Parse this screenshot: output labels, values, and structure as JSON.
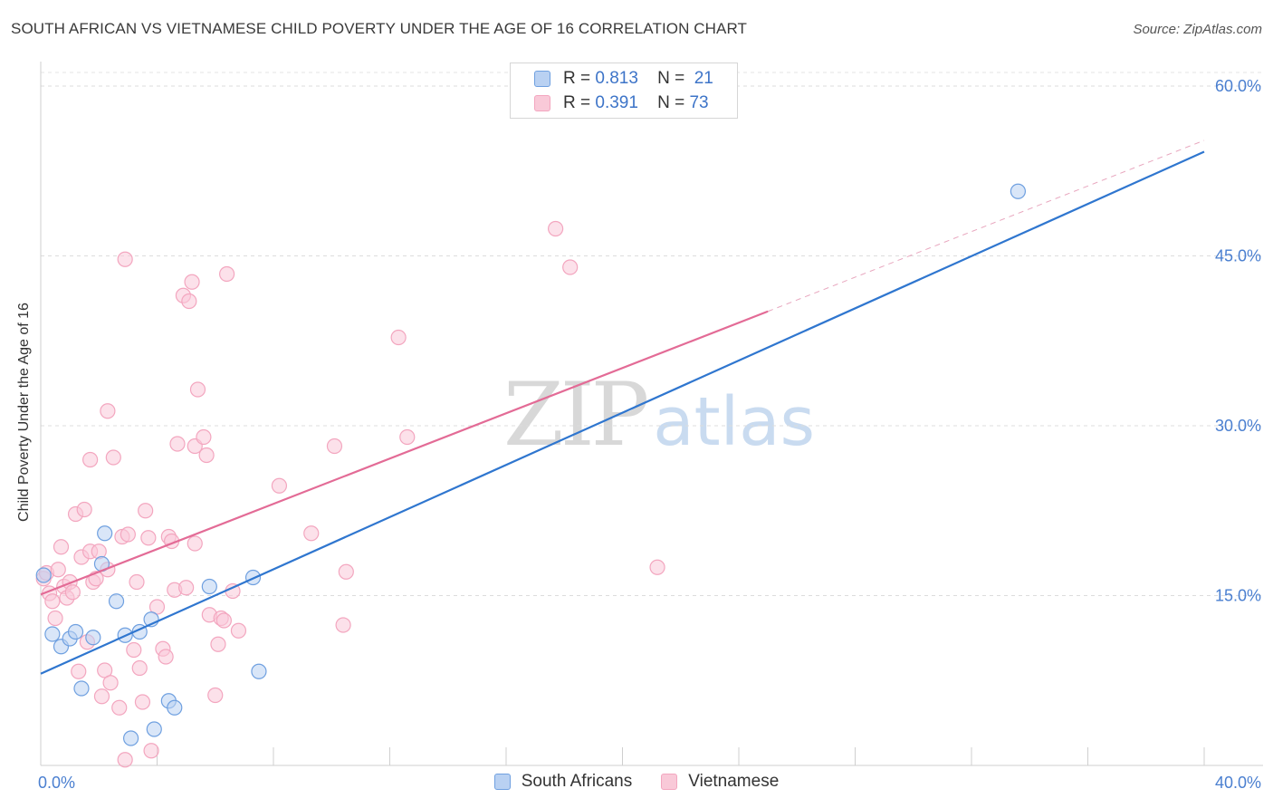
{
  "chart_data": {
    "type": "scatter",
    "title": "SOUTH AFRICAN VS VIETNAMESE CHILD POVERTY UNDER THE AGE OF 16 CORRELATION CHART",
    "source": "Source: ZipAtlas.com",
    "ylabel": "Child Poverty Under the Age of 16",
    "xlim": [
      0,
      40
    ],
    "ylim": [
      0,
      60
    ],
    "x_tick_labels": [
      "0.0%",
      "40.0%"
    ],
    "y_ticks": [
      15,
      30,
      45,
      60
    ],
    "y_tick_labels": [
      "15.0%",
      "30.0%",
      "45.0%",
      "60.0%"
    ],
    "watermark": {
      "zip": "ZIP",
      "atlas": "atlas"
    },
    "legend": {
      "rows": [
        {
          "r_label": "R =",
          "r": "0.813",
          "n_label": "N =",
          "n": "21"
        },
        {
          "r_label": "R =",
          "r": "0.391",
          "n_label": "N =",
          "n": "73"
        }
      ]
    },
    "series": [
      {
        "name": "South Africans",
        "color": "#6fa0e0",
        "fill": "#b9d1f2",
        "line_color": "#2f76cf",
        "trend": {
          "x0": 0,
          "y0": 8.1,
          "x1": 40,
          "y1": 54.2
        },
        "points": [
          [
            0.1,
            16.8
          ],
          [
            0.4,
            11.6
          ],
          [
            0.7,
            10.5
          ],
          [
            1.0,
            11.2
          ],
          [
            1.2,
            11.8
          ],
          [
            1.4,
            6.8
          ],
          [
            1.8,
            11.3
          ],
          [
            2.2,
            20.5
          ],
          [
            2.1,
            17.8
          ],
          [
            2.6,
            14.5
          ],
          [
            2.9,
            11.5
          ],
          [
            3.1,
            2.4
          ],
          [
            3.4,
            11.8
          ],
          [
            3.8,
            12.9
          ],
          [
            3.9,
            3.2
          ],
          [
            4.4,
            5.7
          ],
          [
            4.6,
            5.1
          ],
          [
            5.8,
            15.8
          ],
          [
            7.3,
            16.6
          ],
          [
            7.5,
            8.3
          ],
          [
            33.6,
            50.7
          ]
        ]
      },
      {
        "name": "Vietnamese",
        "color": "#f3a6bf",
        "fill": "#f9c9d8",
        "line_color": "#e36b96",
        "trend": {
          "x0": 0,
          "y0": 15.1,
          "x1": 25,
          "y1": 40.1,
          "dash_to_x": 40,
          "dash_to_y": 55.2
        },
        "points": [
          [
            0.1,
            16.5
          ],
          [
            0.2,
            17.0
          ],
          [
            0.3,
            15.2
          ],
          [
            0.4,
            14.5
          ],
          [
            0.5,
            13.0
          ],
          [
            0.6,
            17.3
          ],
          [
            0.7,
            19.3
          ],
          [
            0.8,
            15.8
          ],
          [
            0.9,
            14.8
          ],
          [
            1.0,
            16.2
          ],
          [
            1.1,
            15.3
          ],
          [
            1.2,
            22.2
          ],
          [
            1.3,
            8.3
          ],
          [
            1.4,
            18.4
          ],
          [
            1.5,
            22.6
          ],
          [
            1.6,
            10.9
          ],
          [
            1.7,
            18.9
          ],
          [
            1.8,
            16.2
          ],
          [
            1.9,
            16.5
          ],
          [
            2.0,
            18.9
          ],
          [
            2.1,
            6.1
          ],
          [
            2.2,
            8.4
          ],
          [
            2.3,
            17.3
          ],
          [
            2.4,
            7.3
          ],
          [
            2.3,
            31.3
          ],
          [
            2.5,
            27.2
          ],
          [
            1.7,
            27.0
          ],
          [
            2.7,
            5.1
          ],
          [
            2.9,
            0.5
          ],
          [
            2.8,
            20.2
          ],
          [
            3.0,
            20.4
          ],
          [
            2.9,
            44.7
          ],
          [
            3.2,
            10.2
          ],
          [
            3.3,
            16.2
          ],
          [
            3.4,
            8.6
          ],
          [
            3.5,
            5.6
          ],
          [
            3.6,
            22.5
          ],
          [
            3.7,
            20.1
          ],
          [
            3.8,
            1.3
          ],
          [
            4.0,
            14.0
          ],
          [
            4.2,
            10.3
          ],
          [
            4.3,
            9.6
          ],
          [
            4.4,
            20.2
          ],
          [
            4.5,
            19.8
          ],
          [
            4.6,
            15.5
          ],
          [
            4.7,
            28.4
          ],
          [
            4.9,
            41.5
          ],
          [
            5.0,
            15.7
          ],
          [
            5.1,
            41.0
          ],
          [
            5.2,
            42.7
          ],
          [
            5.3,
            28.2
          ],
          [
            5.3,
            19.6
          ],
          [
            5.4,
            33.2
          ],
          [
            5.6,
            29.0
          ],
          [
            5.7,
            27.4
          ],
          [
            5.8,
            13.3
          ],
          [
            6.0,
            6.2
          ],
          [
            6.1,
            10.7
          ],
          [
            6.2,
            13.0
          ],
          [
            6.3,
            12.8
          ],
          [
            6.4,
            43.4
          ],
          [
            6.6,
            15.4
          ],
          [
            6.8,
            11.9
          ],
          [
            8.2,
            24.7
          ],
          [
            9.3,
            20.5
          ],
          [
            10.1,
            28.2
          ],
          [
            10.4,
            12.4
          ],
          [
            10.5,
            17.1
          ],
          [
            12.3,
            37.8
          ],
          [
            12.6,
            29.0
          ],
          [
            17.7,
            47.4
          ],
          [
            18.2,
            44.0
          ],
          [
            21.2,
            17.5
          ]
        ]
      }
    ]
  }
}
